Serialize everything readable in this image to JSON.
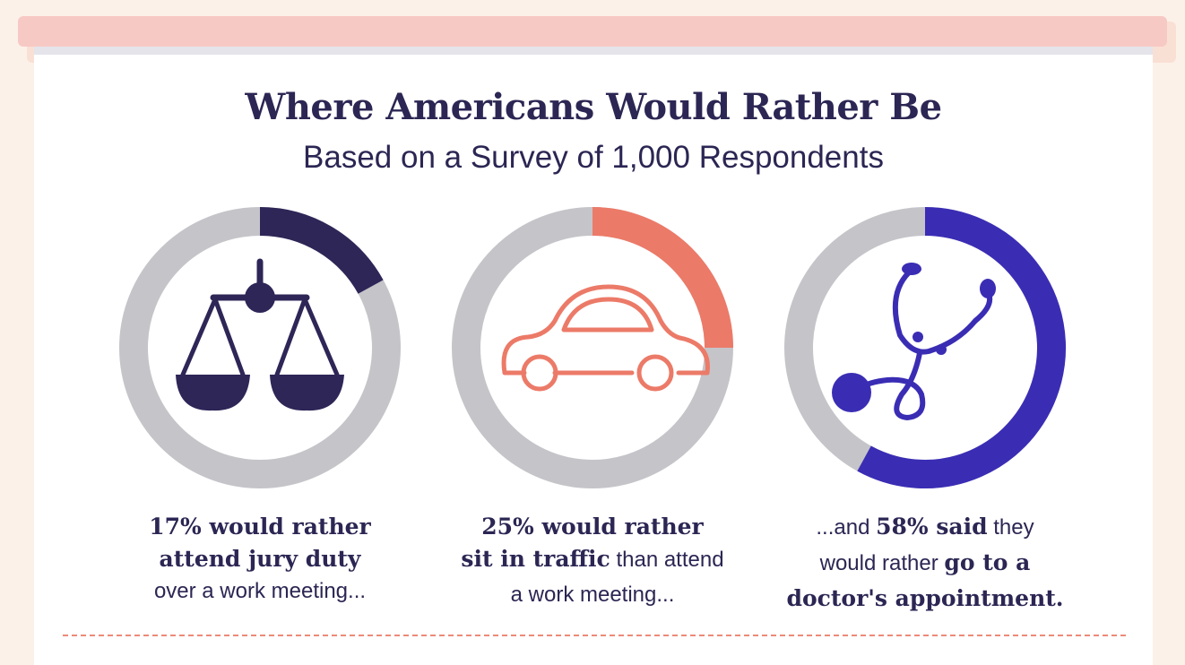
{
  "header": {
    "title": "Where Americans Would Rather Be",
    "subtitle": "Based on a Survey of 1,000 Respondents"
  },
  "colors": {
    "track": "#c5c4c9",
    "navy": "#2e2657",
    "coral": "#ec7a68",
    "indigo": "#3a2db4",
    "background": "#fcf1e8"
  },
  "chart_data": [
    {
      "type": "pie",
      "values": [
        17,
        83
      ],
      "highlight_color": "#2e2657",
      "icon": "scales-of-justice-icon",
      "caption": {
        "l1": "17% would rather",
        "l2": "attend jury duty",
        "l3": "over a work meeting..."
      }
    },
    {
      "type": "pie",
      "values": [
        25,
        75
      ],
      "highlight_color": "#ec7a68",
      "icon": "car-icon",
      "caption": {
        "l1": "25% would rather",
        "l2a": "sit in traffic",
        "l2b": " than attend",
        "l3": "a work meeting..."
      }
    },
    {
      "type": "pie",
      "values": [
        58,
        42
      ],
      "highlight_color": "#3a2db4",
      "icon": "stethoscope-icon",
      "caption": {
        "l1a": "...and ",
        "l1b": "58% said",
        "l1c": " they",
        "l2a": "would rather ",
        "l2b": "go to a",
        "l3": "doctor's appointment."
      }
    }
  ]
}
